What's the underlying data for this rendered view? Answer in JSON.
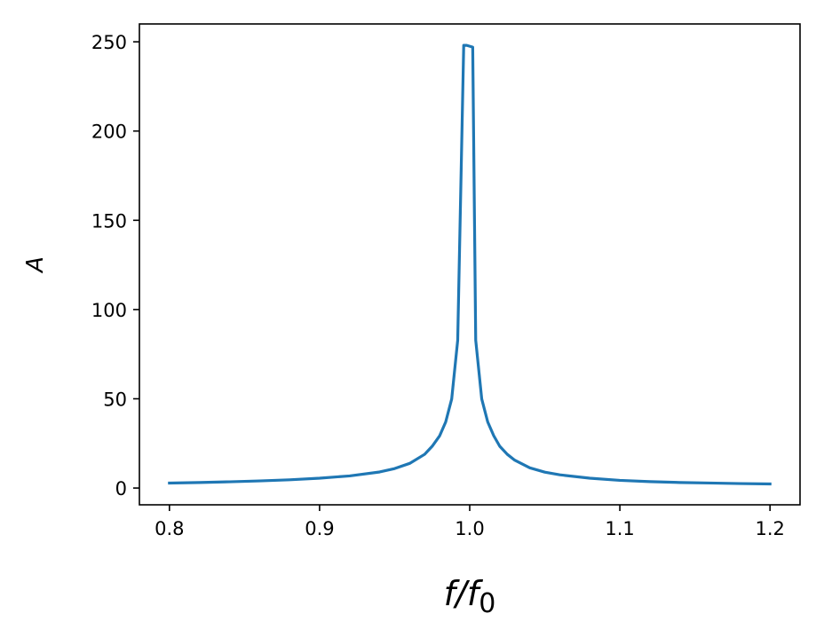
{
  "chart_data": {
    "type": "line",
    "xlabel": "f/f0",
    "xlabel_parts": {
      "base": "f/f",
      "subscript": "0"
    },
    "ylabel": "A",
    "xlim": [
      0.78,
      1.22
    ],
    "ylim": [
      -9.4,
      260
    ],
    "xticks": [
      0.8,
      0.9,
      1.0,
      1.1,
      1.2
    ],
    "xtick_labels": [
      "0.8",
      "0.9",
      "1.0",
      "1.1",
      "1.2"
    ],
    "yticks": [
      0,
      50,
      100,
      150,
      200,
      250
    ],
    "ytick_labels": [
      "0",
      "50",
      "100",
      "150",
      "200",
      "250"
    ],
    "grid": false,
    "series": [
      {
        "color": "#1f77b4",
        "x": [
          0.8,
          0.82,
          0.84,
          0.86,
          0.88,
          0.9,
          0.92,
          0.94,
          0.95,
          0.96,
          0.97,
          0.975,
          0.98,
          0.984,
          0.988,
          0.992,
          0.996,
          0.998,
          1.002,
          1.004,
          1.008,
          1.012,
          1.016,
          1.02,
          1.025,
          1.03,
          1.04,
          1.05,
          1.06,
          1.08,
          1.1,
          1.12,
          1.14,
          1.16,
          1.18,
          1.2
        ],
        "y": [
          2.8,
          3.1,
          3.5,
          4.0,
          4.6,
          5.5,
          6.8,
          9.0,
          10.9,
          13.8,
          18.9,
          23.4,
          29.3,
          37.0,
          49.9,
          82.8,
          248.0,
          248.0,
          247.0,
          82.8,
          49.9,
          37.0,
          29.3,
          23.4,
          18.9,
          15.6,
          11.3,
          8.9,
          7.4,
          5.5,
          4.3,
          3.6,
          3.1,
          2.8,
          2.5,
          2.3
        ]
      }
    ]
  }
}
